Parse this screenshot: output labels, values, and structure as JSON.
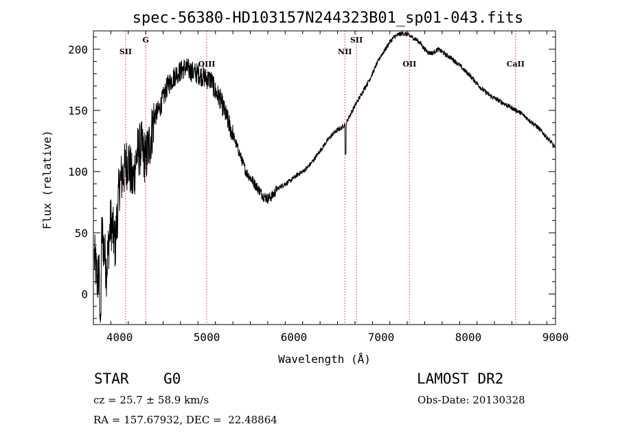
{
  "chart_data": {
    "type": "line",
    "title": "spec-56380-HD103157N244323B01_sp01-043.fits",
    "xlabel": "Wavelength (Å)",
    "ylabel": "Flux (relative)",
    "xlim": [
      3700,
      9000
    ],
    "ylim": [
      -25,
      215
    ],
    "xticks": [
      4000,
      5000,
      6000,
      7000,
      8000,
      9000
    ],
    "yticks": [
      0,
      50,
      100,
      150,
      200
    ],
    "grid": false,
    "series": [
      {
        "x": [
          3710,
          3750,
          3800,
          3850,
          3900,
          3950,
          4000,
          4050,
          4100,
          4150,
          4200,
          4250,
          4300,
          4350,
          4400,
          4450,
          4500,
          4550,
          4600,
          4650,
          4700,
          4750,
          4800,
          4850,
          4900,
          4950,
          5000,
          5050,
          5100,
          5150,
          5200,
          5250,
          5300,
          5350,
          5400,
          5450,
          5500,
          5550,
          5600,
          5650,
          5700,
          5750,
          5800,
          5850,
          5900,
          5950,
          6000,
          6050,
          6100,
          6150,
          6200,
          6250,
          6300,
          6350,
          6400,
          6450,
          6500,
          6550,
          6600,
          6650,
          6700,
          6750,
          6800,
          6850,
          6900,
          6950,
          7000,
          7050,
          7100,
          7150,
          7200,
          7250,
          7300,
          7350,
          7400,
          7450,
          7500,
          7550,
          7600,
          7650,
          7700,
          7750,
          7800,
          7850,
          7900,
          7950,
          8000,
          8050,
          8100,
          8150,
          8200,
          8250,
          8300,
          8350,
          8400,
          8450,
          8500,
          8550,
          8600,
          8650,
          8700,
          8750,
          8800,
          8850,
          8900,
          8950,
          8990
        ],
        "y": [
          30,
          10,
          50,
          20,
          60,
          40,
          90,
          100,
          110,
          90,
          115,
          120,
          110,
          125,
          145,
          150,
          160,
          170,
          175,
          180,
          182,
          185,
          183,
          181,
          180,
          178,
          176,
          175,
          165,
          160,
          150,
          140,
          130,
          120,
          110,
          100,
          95,
          90,
          85,
          80,
          78,
          80,
          85,
          88,
          90,
          92,
          95,
          98,
          100,
          103,
          107,
          112,
          117,
          122,
          127,
          131,
          134,
          136,
          140,
          147,
          154,
          160,
          167,
          173,
          180,
          188,
          195,
          200,
          206,
          210,
          212,
          213,
          212,
          210,
          208,
          205,
          200,
          197,
          197,
          200,
          198,
          195,
          193,
          190,
          187,
          183,
          180,
          176,
          172,
          168,
          165,
          162,
          160,
          158,
          156,
          154,
          152,
          150,
          148,
          145,
          142,
          139,
          136,
          132,
          128,
          124,
          120
        ]
      }
    ],
    "annotations": [
      {
        "label": "SII",
        "x": 4070,
        "row": "low"
      },
      {
        "label": "G",
        "x": 4300,
        "row": "high"
      },
      {
        "label": "OIII",
        "x": 5000,
        "row": "mid"
      },
      {
        "label": "NII",
        "x": 6584,
        "row": "low"
      },
      {
        "label": "SII",
        "x": 6717,
        "row": "high"
      },
      {
        "label": "OII",
        "x": 7325,
        "row": "mid"
      },
      {
        "label": "CaII",
        "x": 8542,
        "row": "mid"
      }
    ]
  },
  "info": {
    "class": "STAR    G0",
    "survey": "LAMOST DR2",
    "cz": "cz = 25.7 ± 58.9 km/s",
    "obsdate": "Obs-Date: 20130328",
    "radec": "RA = 157.67932, DEC =  22.48864"
  }
}
